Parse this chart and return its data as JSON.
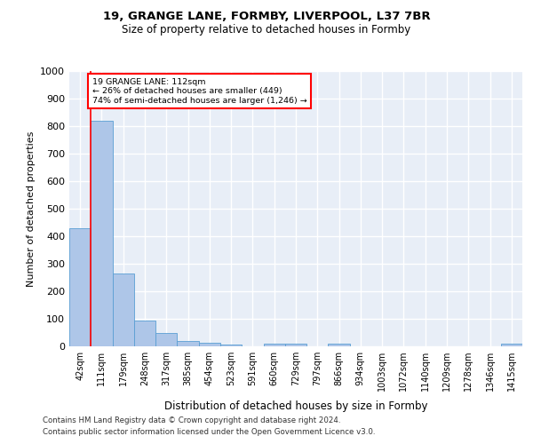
{
  "title1": "19, GRANGE LANE, FORMBY, LIVERPOOL, L37 7BR",
  "title2": "Size of property relative to detached houses in Formby",
  "xlabel": "Distribution of detached houses by size in Formby",
  "ylabel": "Number of detached properties",
  "footer1": "Contains HM Land Registry data © Crown copyright and database right 2024.",
  "footer2": "Contains public sector information licensed under the Open Government Licence v3.0.",
  "bar_labels": [
    "42sqm",
    "111sqm",
    "179sqm",
    "248sqm",
    "317sqm",
    "385sqm",
    "454sqm",
    "523sqm",
    "591sqm",
    "660sqm",
    "729sqm",
    "797sqm",
    "866sqm",
    "934sqm",
    "1003sqm",
    "1072sqm",
    "1140sqm",
    "1209sqm",
    "1278sqm",
    "1346sqm",
    "1415sqm"
  ],
  "bar_heights": [
    430,
    820,
    265,
    93,
    48,
    18,
    12,
    7,
    0,
    10,
    10,
    0,
    10,
    0,
    0,
    0,
    0,
    0,
    0,
    0,
    10
  ],
  "bar_color": "#aec6e8",
  "bar_edge_color": "#5a9fd4",
  "annotation_title": "19 GRANGE LANE: 112sqm",
  "annotation_line1": "← 26% of detached houses are smaller (449)",
  "annotation_line2": "74% of semi-detached houses are larger (1,246) →",
  "vline_color": "red",
  "ylim": [
    0,
    1000
  ],
  "yticks": [
    0,
    100,
    200,
    300,
    400,
    500,
    600,
    700,
    800,
    900,
    1000
  ],
  "background_color": "#e8eef7",
  "grid_color": "white"
}
